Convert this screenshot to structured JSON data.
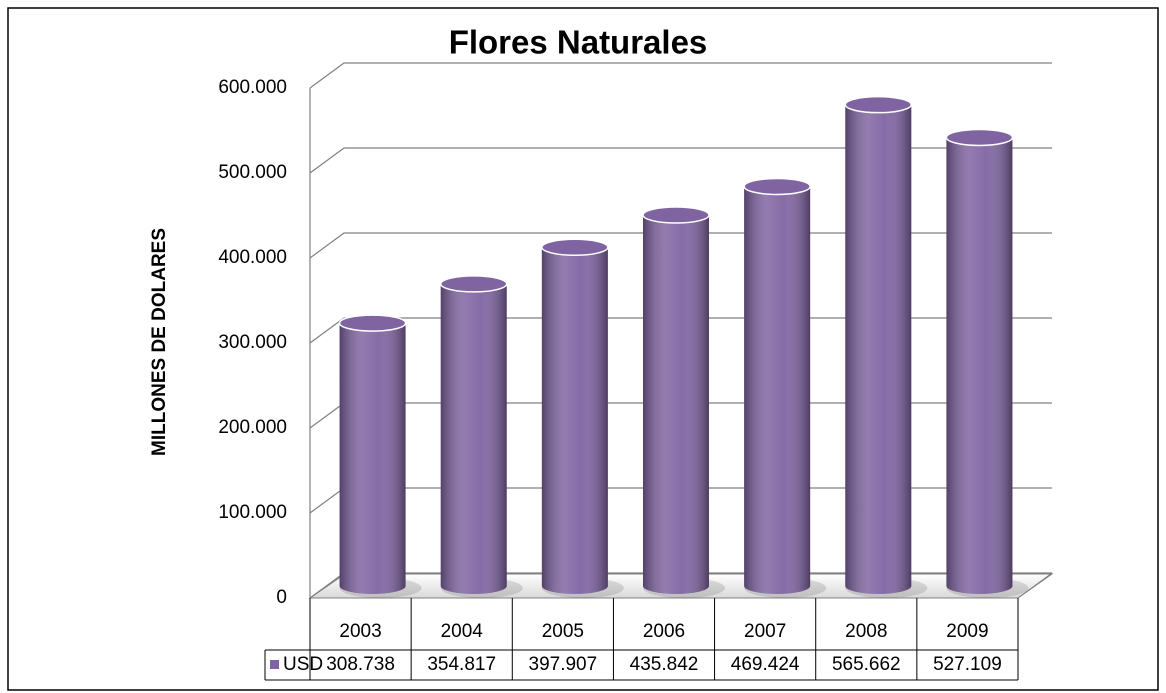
{
  "chart_data": {
    "type": "bar",
    "title": "Flores Naturales",
    "y_label": "MILLONES DE DOLARES",
    "categories": [
      "2003",
      "2004",
      "2005",
      "2006",
      "2007",
      "2008",
      "2009"
    ],
    "series": [
      {
        "name": "USD",
        "color": "#8064a2",
        "values": [
          308738,
          354817,
          397907,
          435842,
          469424,
          565662,
          527109
        ],
        "value_labels": [
          "308.738",
          "354.817",
          "397.907",
          "435.842",
          "469.424",
          "565.662",
          "527.109"
        ]
      }
    ],
    "ylim": [
      0,
      600000
    ],
    "yticks": [
      0,
      {
        "value": 100000,
        "label": "100.000"
      },
      {
        "value": 200000,
        "label": "200.000"
      },
      {
        "value": 300000,
        "label": "300.000"
      },
      {
        "value": 400000,
        "label": "400.000"
      },
      {
        "value": 500000,
        "label": "500.000"
      },
      {
        "value": 600000,
        "label": "600.000"
      }
    ],
    "grid": true,
    "data_table": true
  }
}
